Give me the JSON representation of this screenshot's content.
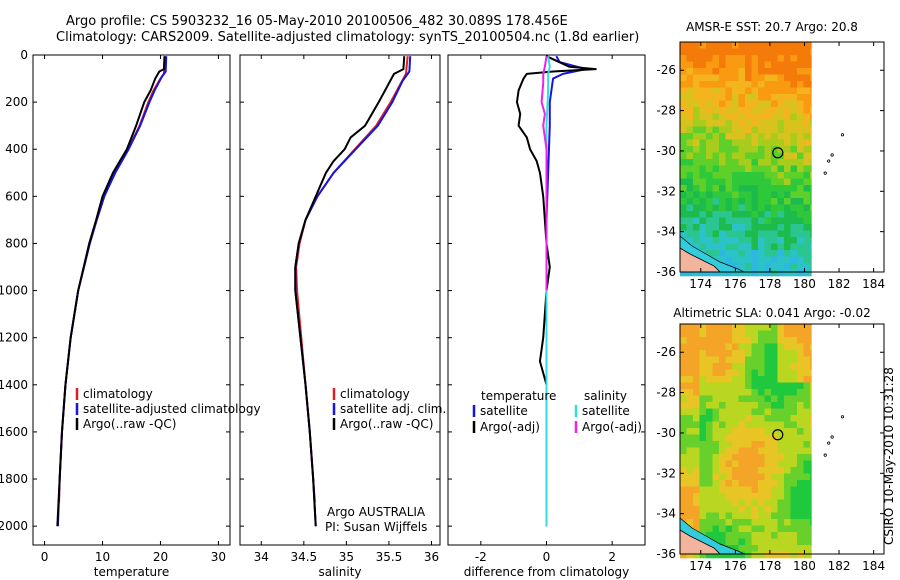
{
  "titles": {
    "line1": "Argo profile: CS 5903232_16 05-May-2010 20100506_482 30.089S 178.456E",
    "line2": "Climatology: CARS2009. Satellite-adjusted climatology: synTS_20100504.nc (1.8d earlier)"
  },
  "side": "CSIRO 10-May-2010 10:31:28",
  "credit": {
    "line1": "Argo AUSTRALIA",
    "line2": "PI: Susan Wijffels"
  },
  "colors": {
    "red": "#e02020",
    "blue": "#1515dd",
    "black": "#000000",
    "cyan": "#33dddd",
    "magenta": "#ee22ee"
  },
  "chart_data": [
    {
      "type": "line",
      "xlabel": "temperature",
      "xlim": [
        -2,
        32
      ],
      "xticks": [
        0,
        10,
        20,
        30
      ],
      "ylim": [
        2080,
        0
      ],
      "yticks": [
        0,
        200,
        400,
        600,
        800,
        1000,
        1200,
        1400,
        1600,
        1800,
        2000
      ],
      "legend": [
        "climatology",
        "satellite-adjusted climatology",
        "Argo(..raw -QC)"
      ],
      "series": [
        {
          "name": "climatology",
          "color": "red",
          "depth": [
            5,
            80,
            100,
            150,
            200,
            300,
            400,
            500,
            600,
            700,
            800,
            1000,
            1200,
            1400,
            1600,
            1800,
            1900
          ],
          "values": [
            20.7,
            20.6,
            20.0,
            18.8,
            17.9,
            16.4,
            14.4,
            12.1,
            10.3,
            9.0,
            7.8,
            5.8,
            4.5,
            3.6,
            3.0,
            2.6,
            2.5
          ]
        },
        {
          "name": "satellite-adjusted climatology",
          "color": "blue",
          "depth": [
            5,
            70,
            90,
            150,
            200,
            300,
            400,
            500,
            600,
            700,
            800,
            1000,
            1200,
            1400,
            1600,
            1800,
            2000
          ],
          "values": [
            21.0,
            20.9,
            20.3,
            19.0,
            18.1,
            16.5,
            14.5,
            12.2,
            10.3,
            9.0,
            7.8,
            5.8,
            4.5,
            3.6,
            3.0,
            2.6,
            2.3
          ]
        },
        {
          "name": "Argo(..raw -QC)",
          "color": "black",
          "depth": [
            5,
            60,
            70,
            100,
            150,
            200,
            300,
            350,
            400,
            450,
            500,
            600,
            700,
            800,
            1000,
            1200,
            1400,
            1600,
            1800,
            2000
          ],
          "values": [
            20.7,
            20.6,
            19.8,
            19.1,
            18.3,
            17.2,
            15.8,
            15.0,
            14.2,
            13.0,
            11.8,
            10.0,
            8.9,
            7.7,
            5.8,
            4.5,
            3.6,
            3.0,
            2.6,
            2.2
          ]
        }
      ]
    },
    {
      "type": "line",
      "xlabel": "salinity",
      "xlim": [
        33.75,
        36.1
      ],
      "xticks": [
        34,
        34.5,
        35,
        35.5,
        36
      ],
      "ylim": [
        2080,
        0
      ],
      "yticks": [
        0,
        200,
        400,
        600,
        800,
        1000,
        1200,
        1400,
        1600,
        1800,
        2000
      ],
      "legend": [
        "climatology",
        "satellite adj. clim.",
        "Argo(..raw -QC)"
      ],
      "series": [
        {
          "name": "climatology",
          "color": "red",
          "depth": [
            5,
            80,
            120,
            200,
            300,
            400,
            500,
            600,
            700,
            800,
            900,
            1000,
            1200,
            1400,
            1600,
            1800,
            1900
          ],
          "values": [
            35.72,
            35.7,
            35.64,
            35.52,
            35.35,
            35.1,
            34.85,
            34.66,
            34.52,
            34.45,
            34.41,
            34.42,
            34.47,
            34.52,
            34.57,
            34.61,
            34.63
          ]
        },
        {
          "name": "satellite adj. clim.",
          "color": "blue",
          "depth": [
            5,
            70,
            110,
            200,
            300,
            400,
            500,
            600,
            700,
            800,
            900,
            1000,
            1200,
            1400,
            1600,
            1800,
            2000
          ],
          "values": [
            35.75,
            35.74,
            35.66,
            35.54,
            35.37,
            35.11,
            34.85,
            34.66,
            34.52,
            34.44,
            34.4,
            34.4,
            34.46,
            34.52,
            34.57,
            34.61,
            34.64
          ]
        },
        {
          "name": "Argo(..raw -QC)",
          "color": "black",
          "depth": [
            5,
            60,
            80,
            120,
            200,
            300,
            350,
            400,
            450,
            500,
            550,
            600,
            700,
            800,
            900,
            1000,
            1200,
            1400,
            1600,
            1800,
            2000
          ],
          "values": [
            35.68,
            35.67,
            35.56,
            35.5,
            35.38,
            35.22,
            35.05,
            34.98,
            34.85,
            34.76,
            34.7,
            34.64,
            34.52,
            34.44,
            34.4,
            34.4,
            34.46,
            34.52,
            34.57,
            34.61,
            34.64
          ]
        }
      ]
    },
    {
      "type": "line",
      "xlabel": "difference from climatology",
      "xlim": [
        -3,
        3
      ],
      "xticks": [
        -2,
        0,
        2
      ],
      "ylim": [
        2080,
        0
      ],
      "yticks": [
        0,
        200,
        400,
        600,
        800,
        1000,
        1200,
        1400,
        1600,
        1800,
        2000
      ],
      "legend_headers": [
        "temperature",
        "salinity"
      ],
      "legend": [
        "satellite",
        "Argo(-adj)",
        "satellite",
        "Argo(-adj)"
      ],
      "series": [
        {
          "name": "satellite",
          "group": "temperature",
          "color": "blue",
          "depth": [
            5,
            30,
            60,
            80,
            100,
            150,
            200,
            300,
            500,
            700,
            1000,
            1200,
            1500,
            2000
          ],
          "values": [
            0.3,
            0.4,
            1.2,
            0.5,
            0.2,
            0.15,
            0.1,
            0.1,
            0.05,
            0.0,
            0.0,
            0.0,
            0.0,
            0.0
          ]
        },
        {
          "name": "Argo(-adj)",
          "group": "temperature",
          "color": "black",
          "depth": [
            5,
            50,
            60,
            70,
            80,
            100,
            150,
            200,
            250,
            300,
            350,
            400,
            450,
            500,
            600,
            700,
            800,
            900,
            1000,
            1100,
            1200,
            1300,
            1350,
            1400,
            1500,
            1600,
            1800,
            2000
          ],
          "values": [
            0.0,
            0.7,
            1.5,
            0.2,
            -0.6,
            -0.7,
            -0.85,
            -0.9,
            -0.8,
            -0.85,
            -0.6,
            -0.5,
            -0.3,
            -0.2,
            -0.1,
            -0.05,
            0.0,
            0.1,
            0.0,
            -0.05,
            -0.1,
            -0.2,
            -0.1,
            0.0,
            0.0,
            0.0,
            0.0,
            0.0
          ]
        },
        {
          "name": "satellite",
          "group": "salinity",
          "color": "cyan",
          "depth": [
            5,
            50,
            80,
            150,
            300,
            600,
            1000,
            1500,
            2000
          ],
          "values": [
            0.05,
            0.1,
            0.05,
            0.05,
            0.0,
            0.0,
            0.0,
            0.0,
            0.0
          ]
        },
        {
          "name": "Argo(-adj)",
          "group": "salinity",
          "color": "magenta",
          "depth": [
            5,
            50,
            80,
            120,
            200,
            250,
            300,
            350,
            400,
            500,
            600,
            800,
            1000
          ],
          "values": [
            0.0,
            -0.05,
            -0.1,
            -0.1,
            -0.15,
            -0.05,
            -0.1,
            -0.05,
            0.0,
            0.0,
            0.0,
            0.0,
            0.0
          ]
        }
      ]
    },
    {
      "type": "heatmap",
      "title": "AMSR-E SST: 20.7 Argo: 20.8",
      "xlim": [
        172.8,
        184.6
      ],
      "ylim": [
        -36,
        -24.6
      ],
      "xticks": [
        174,
        176,
        178,
        180,
        182,
        184
      ],
      "yticks": [
        -26,
        -28,
        -30,
        -32,
        -34,
        -36
      ],
      "marker": {
        "lon": 178.456,
        "lat": -30.089
      },
      "data_extent_lon": [
        172.8,
        180.4
      ]
    },
    {
      "type": "heatmap",
      "title": "Altimetric SLA: 0.041 Argo: -0.02",
      "xlim": [
        172.8,
        184.6
      ],
      "ylim": [
        -36,
        -24.6
      ],
      "xticks": [
        174,
        176,
        178,
        180,
        182,
        184
      ],
      "yticks": [
        -26,
        -28,
        -30,
        -32,
        -34,
        -36
      ],
      "marker": {
        "lon": 178.456,
        "lat": -30.089
      },
      "data_extent_lon": [
        172.8,
        180.4
      ]
    }
  ]
}
